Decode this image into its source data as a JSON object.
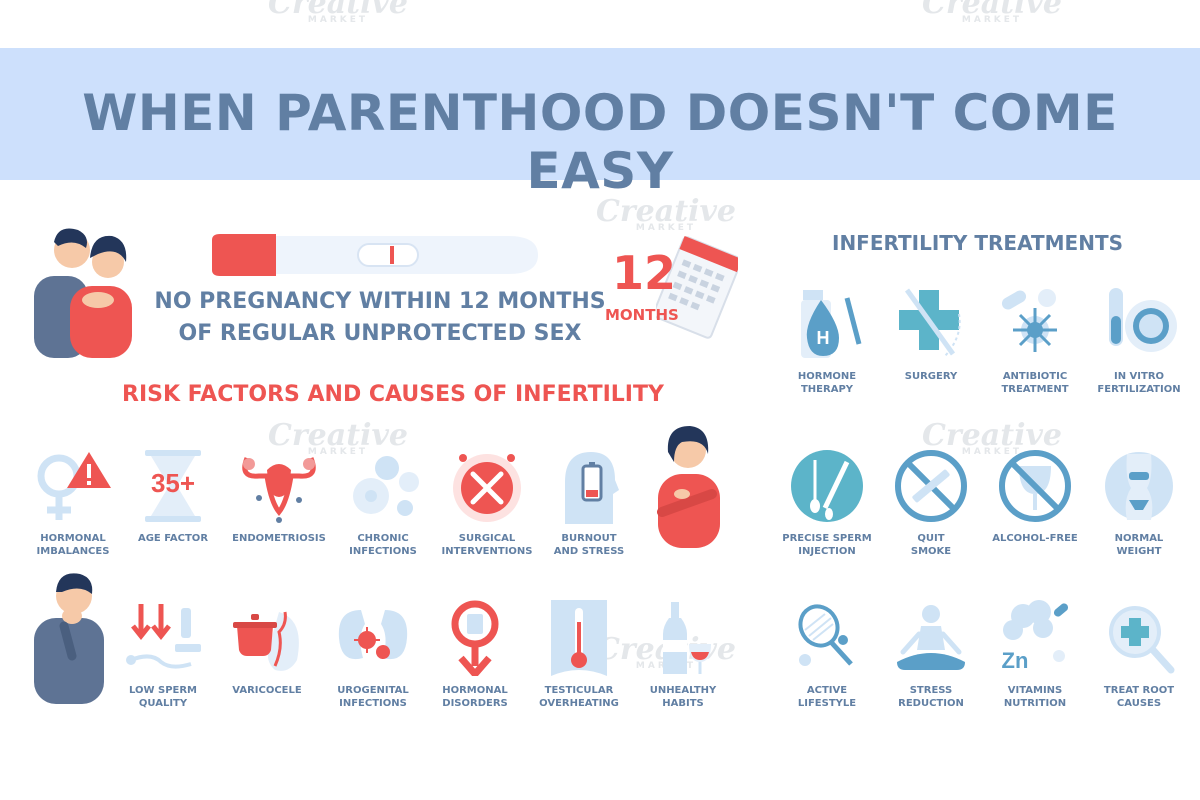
{
  "watermark": {
    "brand": "Creative",
    "sub": "MARKET"
  },
  "header": {
    "title": "WHEN PARENTHOOD DOESN'T COME EASY"
  },
  "intro": {
    "line1": "NO PREGNANCY WITHIN 12 MONTHS",
    "line2": "OF REGULAR UNPROTECTED SEX",
    "calendar_number": "12",
    "calendar_label": "MONTHS"
  },
  "risk": {
    "title": "RISK FACTORS AND CAUSES OF INFERTILITY",
    "items": [
      {
        "label": "HORMONAL\nIMBALANCES",
        "icon": "female-sign-warning-icon"
      },
      {
        "label": "AGE FACTOR",
        "icon": "hourglass-35-icon",
        "value": "35+"
      },
      {
        "label": "ENDOMETRIOSIS",
        "icon": "uterus-icon"
      },
      {
        "label": "CHRONIC\nINFECTIONS",
        "icon": "bacteria-icon"
      },
      {
        "label": "SURGICAL\nINTERVENTIONS",
        "icon": "surgical-tools-icon"
      },
      {
        "label": "BURNOUT\nAND STRESS",
        "icon": "low-battery-head-icon"
      },
      {
        "label": "LOW SPERM\nQUALITY",
        "icon": "microscope-sperm-icon"
      },
      {
        "label": "VARICOCELE",
        "icon": "pot-vein-icon"
      },
      {
        "label": "UROGENITAL\nINFECTIONS",
        "icon": "kidneys-virus-icon"
      },
      {
        "label": "HORMONAL\nDISORDERS",
        "icon": "male-sign-icon"
      },
      {
        "label": "TESTICULAR\nOVERHEATING",
        "icon": "thermometer-icon"
      },
      {
        "label": "UNHEALTHY\nHABITS",
        "icon": "bottle-glass-icon"
      }
    ]
  },
  "treatments": {
    "title": "INFERTILITY TREATMENTS",
    "items": [
      {
        "label": "HORMONE\nTHERAPY",
        "icon": "hormone-drop-syringe-icon",
        "value": "H"
      },
      {
        "label": "SURGERY",
        "icon": "cross-scalpel-icon"
      },
      {
        "label": "ANTIBIOTIC\nTREATMENT",
        "icon": "pills-virus-icon"
      },
      {
        "label": "IN VITRO\nFERTILIZATION",
        "icon": "test-tube-egg-icon"
      },
      {
        "label": "PRECISE SPERM\nINJECTION",
        "icon": "sperm-injection-icon"
      },
      {
        "label": "QUIT\nSMOKE",
        "icon": "no-smoking-icon"
      },
      {
        "label": "ALCOHOL-FREE",
        "icon": "no-alcohol-icon"
      },
      {
        "label": "NORMAL\nWEIGHT",
        "icon": "body-silhouette-icon"
      },
      {
        "label": "ACTIVE\nLIFESTYLE",
        "icon": "racket-icon"
      },
      {
        "label": "STRESS\nREDUCTION",
        "icon": "meditation-icon"
      },
      {
        "label": "VITAMINS\nNUTRITION",
        "icon": "broccoli-zn-icon",
        "value": "Zn"
      },
      {
        "label": "TREAT ROOT\nCAUSES",
        "icon": "magnifier-cross-icon"
      }
    ]
  },
  "colors": {
    "primary": "#617fa3",
    "accent": "#ee5552",
    "banner": "#cde0fc",
    "icon_light": "#cfe3f5",
    "icon_mid": "#5b9fc8",
    "icon_teal": "#5cb4c9"
  }
}
